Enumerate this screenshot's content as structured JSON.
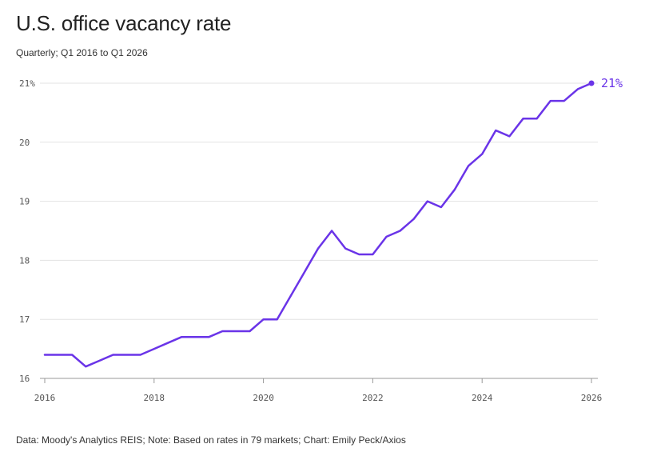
{
  "title": "U.S. office vacancy rate",
  "subtitle": "Quarterly; Q1 2016 to Q1 2026",
  "footer": "Data: Moody's Analytics REIS; Note: Based on rates in 79 markets; Chart: Emily Peck/Axios",
  "colors": {
    "line": "#6a34e8",
    "grid": "#e3e3e3",
    "axis": "#999999",
    "text": "#222222"
  },
  "chart_data": {
    "type": "line",
    "title": "U.S. office vacancy rate",
    "subtitle": "Quarterly; Q1 2016 to Q1 2026",
    "xlabel": "",
    "ylabel": "",
    "xlim": [
      2016,
      2026
    ],
    "ylim": [
      16,
      21
    ],
    "x_ticks": [
      2016,
      2018,
      2020,
      2022,
      2024,
      2026
    ],
    "x_tick_labels": [
      "2016",
      "2018",
      "2020",
      "2022",
      "2024",
      "2026"
    ],
    "y_ticks": [
      16,
      17,
      18,
      19,
      20,
      21
    ],
    "y_tick_labels": [
      "16",
      "17",
      "18",
      "19",
      "20",
      "21%"
    ],
    "grid": "horizontal",
    "end_label": "21%",
    "series": [
      {
        "color": "#6a34e8",
        "x": [
          "Q1 2016",
          "Q2 2016",
          "Q3 2016",
          "Q4 2016",
          "Q1 2017",
          "Q2 2017",
          "Q3 2017",
          "Q4 2017",
          "Q1 2018",
          "Q2 2018",
          "Q3 2018",
          "Q4 2018",
          "Q1 2019",
          "Q2 2019",
          "Q3 2019",
          "Q4 2019",
          "Q1 2020",
          "Q2 2020",
          "Q3 2020",
          "Q4 2020",
          "Q1 2021",
          "Q2 2021",
          "Q3 2021",
          "Q4 2021",
          "Q1 2022",
          "Q2 2022",
          "Q3 2022",
          "Q4 2022",
          "Q1 2023",
          "Q2 2023",
          "Q3 2023",
          "Q4 2023",
          "Q1 2024",
          "Q2 2024",
          "Q3 2024",
          "Q4 2024",
          "Q1 2025",
          "Q2 2025",
          "Q3 2025",
          "Q4 2025",
          "Q1 2026"
        ],
        "values": [
          16.4,
          16.4,
          16.4,
          16.2,
          16.3,
          16.4,
          16.4,
          16.4,
          16.5,
          16.6,
          16.7,
          16.7,
          16.7,
          16.8,
          16.8,
          16.8,
          17.0,
          17.0,
          17.4,
          17.8,
          18.2,
          18.5,
          18.2,
          18.1,
          18.1,
          18.4,
          18.5,
          18.7,
          19.0,
          18.9,
          19.2,
          19.6,
          19.8,
          20.2,
          20.1,
          20.4,
          20.4,
          20.7,
          20.7,
          20.9,
          21.0
        ]
      }
    ]
  }
}
